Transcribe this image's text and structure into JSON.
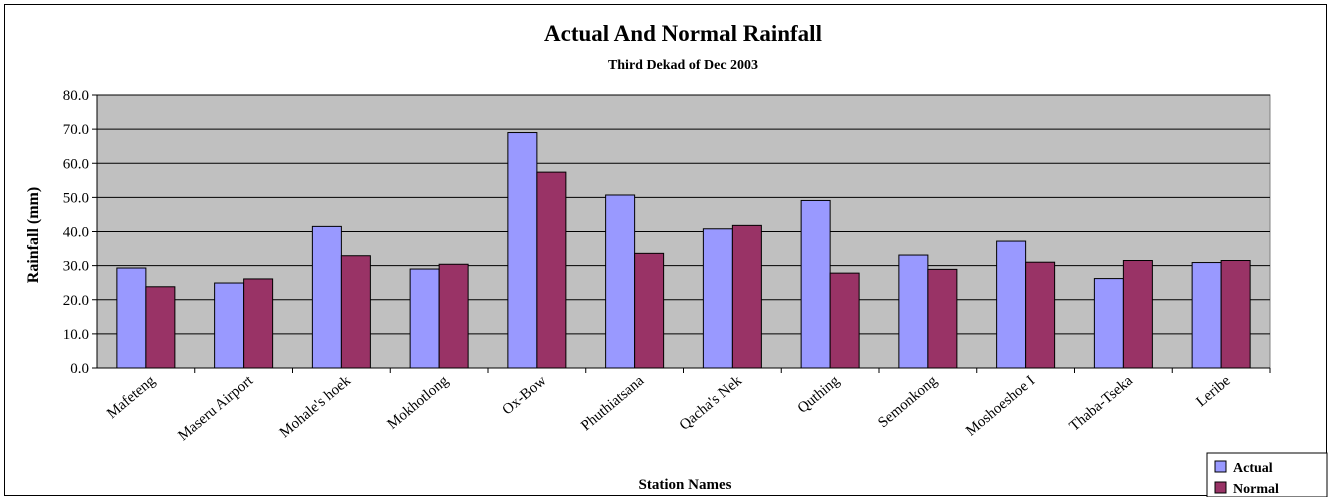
{
  "chart_data": {
    "type": "bar",
    "title": "Actual And Normal Rainfall",
    "subtitle": "Third  Dekad of Dec 2003",
    "xlabel": "Station Names",
    "ylabel": "Rainfall (mm)",
    "ylim": [
      0,
      80
    ],
    "yticks": [
      "0.0",
      "10.0",
      "20.0",
      "30.0",
      "40.0",
      "50.0",
      "60.0",
      "70.0",
      "80.0"
    ],
    "grid": true,
    "legend_position": "bottom-right",
    "categories": [
      "Mafeteng",
      "Maseru Airport",
      "Mohale's hoek",
      "Mokhotlong",
      "Ox-Bow",
      "Phuthiatsana",
      "Qacha's Nek",
      "Quthing",
      "Semonkong",
      "Moshoeshoe I",
      "Thaba-Tseka",
      "Leribe"
    ],
    "series": [
      {
        "name": "Actual",
        "color": "#9999ff",
        "values": [
          29.3,
          24.9,
          41.5,
          29.0,
          69.0,
          50.7,
          40.8,
          49.1,
          33.1,
          37.2,
          26.2,
          30.9
        ]
      },
      {
        "name": "Normal",
        "color": "#993366",
        "values": [
          23.8,
          26.1,
          32.9,
          30.4,
          57.4,
          33.6,
          41.8,
          27.8,
          28.9,
          31.0,
          31.5,
          31.5
        ]
      }
    ],
    "plot_background": "#c0c0c0"
  }
}
